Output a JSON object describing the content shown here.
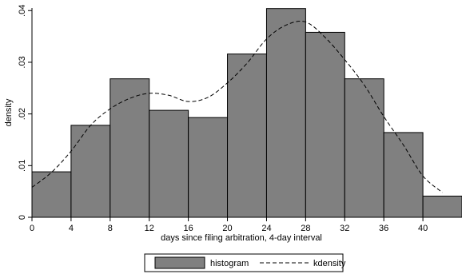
{
  "chart_data": {
    "type": "bar",
    "xlabel": "days since filing arbitration, 4-day interval",
    "ylabel": "density",
    "xlim": [
      0,
      44
    ],
    "ylim": [
      0,
      0.041
    ],
    "x_ticks": [
      0,
      4,
      8,
      12,
      16,
      20,
      24,
      28,
      32,
      36,
      40
    ],
    "y_ticks": [
      0,
      0.01,
      0.02,
      0.03,
      0.04
    ],
    "y_tick_labels": [
      "0",
      ".01",
      ".02",
      ".03",
      ".04"
    ],
    "grid": false,
    "legend_position": "bottom",
    "series": [
      {
        "name": "histogram",
        "kind": "bars",
        "color": "#808080",
        "bin_width": 4,
        "bins": [
          {
            "x": 0,
            "value": 0.0088
          },
          {
            "x": 4,
            "value": 0.0178
          },
          {
            "x": 8,
            "value": 0.0268
          },
          {
            "x": 12,
            "value": 0.0207
          },
          {
            "x": 16,
            "value": 0.0193
          },
          {
            "x": 20,
            "value": 0.0316
          },
          {
            "x": 24,
            "value": 0.0404
          },
          {
            "x": 28,
            "value": 0.0358
          },
          {
            "x": 32,
            "value": 0.0268
          },
          {
            "x": 36,
            "value": 0.0164
          },
          {
            "x": 40,
            "value": 0.0041
          }
        ]
      },
      {
        "name": "kdensity",
        "kind": "dashed-line",
        "color": "#000000",
        "points": [
          [
            0,
            0.0058
          ],
          [
            2,
            0.0087
          ],
          [
            4,
            0.0128
          ],
          [
            6,
            0.0178
          ],
          [
            8,
            0.021
          ],
          [
            10,
            0.023
          ],
          [
            12,
            0.024
          ],
          [
            14,
            0.0236
          ],
          [
            16,
            0.0224
          ],
          [
            18,
            0.0232
          ],
          [
            20,
            0.026
          ],
          [
            22,
            0.0298
          ],
          [
            24,
            0.0345
          ],
          [
            26,
            0.0372
          ],
          [
            28,
            0.0378
          ],
          [
            30,
            0.0348
          ],
          [
            32,
            0.0305
          ],
          [
            34,
            0.0256
          ],
          [
            36,
            0.0195
          ],
          [
            38,
            0.014
          ],
          [
            40,
            0.008
          ],
          [
            42,
            0.0048
          ]
        ]
      }
    ]
  }
}
